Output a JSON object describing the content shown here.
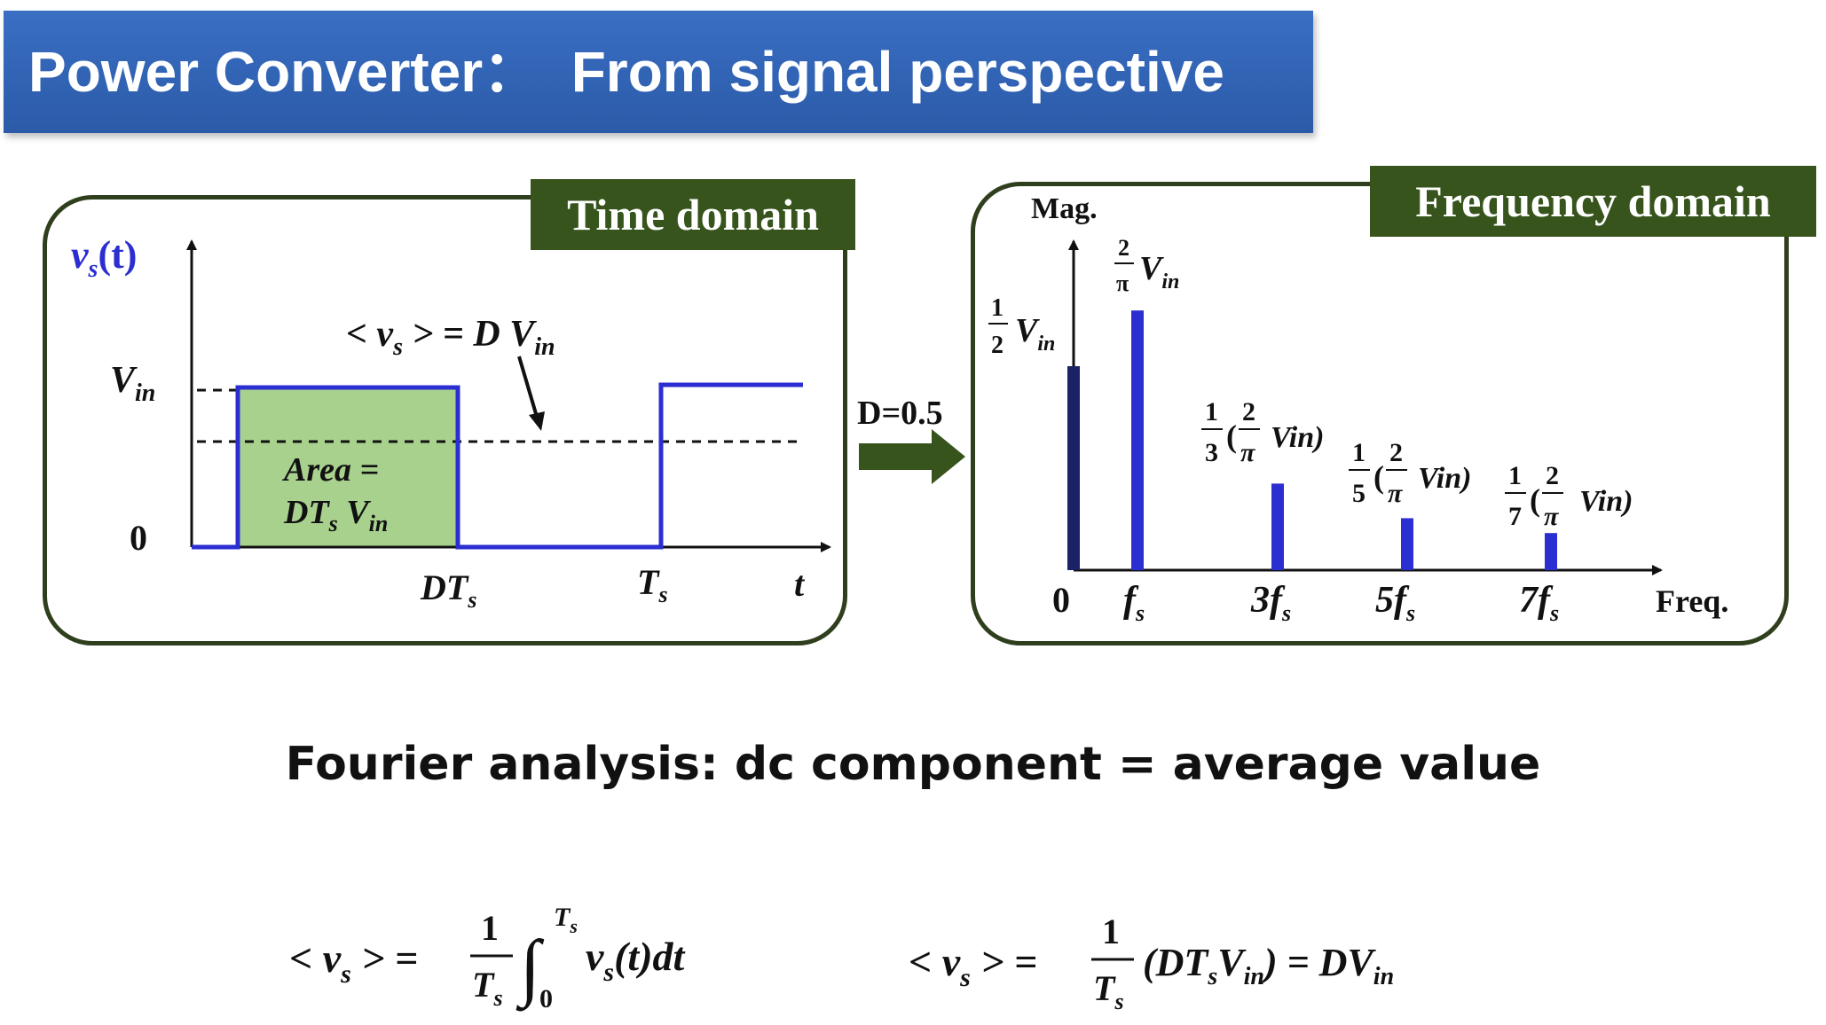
{
  "title": "Power Converter：  From signal perspective",
  "time_panel": {
    "tag": "Time domain",
    "y_axis_label": "v",
    "y_axis_label_sub": "s",
    "y_axis_label_arg": "(t)",
    "vin_label": "V",
    "vin_sub": "in",
    "zero_label": "0",
    "avg_label_lhs": "< v",
    "avg_label_sub": "s",
    "avg_label_rhs": " > = D V",
    "avg_label_rhs_sub": "in",
    "area_line1": "Area =",
    "area_line2": "DT",
    "area_line2_sub": "s",
    "area_line2_b": " V",
    "area_line2_b_sub": "in",
    "tick_dts": "DT",
    "tick_dts_sub": "s",
    "tick_ts": "T",
    "tick_ts_sub": "s",
    "x_axis_label": "t"
  },
  "d_label": "D=0.5",
  "freq_panel": {
    "tag": "Frequency domain",
    "y_axis_label": "Mag.",
    "x_axis_label": "Freq.",
    "ticks": [
      {
        "main": "0",
        "sub": ""
      },
      {
        "main": "f",
        "sub": "s"
      },
      {
        "main": "3f",
        "sub": "s"
      },
      {
        "main": "5f",
        "sub": "s"
      },
      {
        "main": "7f",
        "sub": "s"
      }
    ],
    "labels": {
      "dc_num": "1",
      "dc_den": "2",
      "dc_text": "V",
      "dc_sub": "in",
      "f1_num": "2",
      "f1_den": "π",
      "f1_text": "V",
      "f1_sub": "in",
      "h3_num": "1",
      "h3_den": "3",
      "h5_num": "1",
      "h5_den": "5",
      "h7_num": "1",
      "h7_den": "7",
      "inner_num": "2",
      "inner_den": "π",
      "inner_text": "Vin)",
      "open_paren": "("
    }
  },
  "chart_data": {
    "type": "bar",
    "categories": [
      "0",
      "fs",
      "3fs",
      "5fs",
      "7fs"
    ],
    "values": [
      0.5,
      0.6366,
      0.2122,
      0.1273,
      0.0909
    ],
    "ylabel": "Mag.",
    "xlabel": "Freq.",
    "color": "#2b2ed0"
  },
  "heading": "Fourier analysis: dc component = average value",
  "equations": {
    "eq1_lhs": "< v",
    "eq1_lhs_sub": "s",
    "eq1_mid": " > =",
    "eq1_num": "1",
    "eq1_den": "T",
    "eq1_den_sub": "s",
    "eq1_int_upper": "T",
    "eq1_int_upper_sub": "s",
    "eq1_int_lower": "0",
    "eq1_integrand": "v",
    "eq1_integrand_sub": "s",
    "eq1_integrand_tail": "(t)dt",
    "eq2_lhs": "< v",
    "eq2_lhs_sub": "s",
    "eq2_mid": " > =",
    "eq2_num": "1",
    "eq2_den": "T",
    "eq2_den_sub": "s",
    "eq2_body": "(DT",
    "eq2_body_sub": "s",
    "eq2_body2": "V",
    "eq2_body2_sub": "in",
    "eq2_tail": ") = DV",
    "eq2_tail_sub": "in"
  },
  "colors": {
    "title_bg": "#2b5aa8",
    "tag_bg": "#37541d",
    "waveform": "#2b2ed0",
    "area_fill": "#a9d18e",
    "arrow": "#37541d"
  }
}
